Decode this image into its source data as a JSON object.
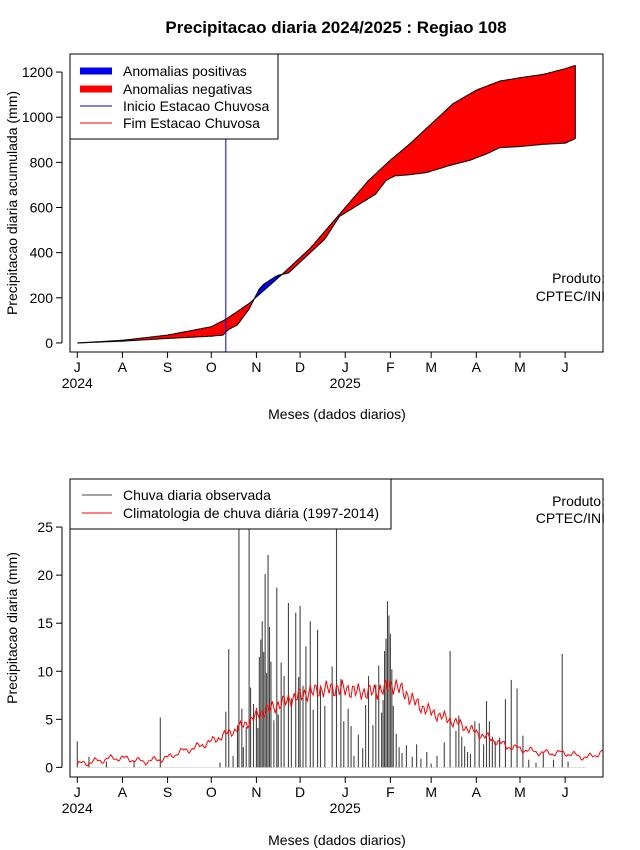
{
  "chart_data": [
    {
      "type": "area",
      "title": "Precipitacao diaria 2024/2025 : Regiao 108",
      "xlabel": "Meses (dados diarios)",
      "ylabel": "Precipitacao diaria acumulada (mm)",
      "x_ticks": [
        "J",
        "A",
        "S",
        "O",
        "N",
        "D",
        "J",
        "F",
        "M",
        "A",
        "M",
        "J"
      ],
      "year_labels": [
        {
          "year": "2024",
          "at_tick": "J"
        },
        {
          "year": "2025",
          "at_tick": "J"
        }
      ],
      "x_range_days": [
        -5,
        361
      ],
      "tick_days": [
        0,
        31,
        62,
        92,
        123,
        153,
        184,
        215,
        243,
        274,
        304,
        335
      ],
      "ylim": [
        -40,
        1280
      ],
      "y_ticks": [
        0,
        200,
        400,
        600,
        800,
        1000,
        1200
      ],
      "grid": false,
      "legend_position": "top-left",
      "legend": [
        {
          "label": "Anomalias positivas",
          "color": "#0000ee",
          "kind": "thick"
        },
        {
          "label": "Anomalias negativas",
          "color": "#ff0000",
          "kind": "thick"
        },
        {
          "label": "Inicio Estacao Chuvosa",
          "color": "#0000cc",
          "kind": "thin"
        },
        {
          "label": "Fim Estacao Chuvosa",
          "color": "#ff0000",
          "kind": "thin"
        }
      ],
      "annotation": [
        "Produto:",
        "CPTEC/INI"
      ],
      "rainy_season_start_day": 102,
      "series": [
        {
          "name": "Climatologia acumulada",
          "x": [
            0,
            31,
            62,
            92,
            102,
            118,
            140,
            160,
            180,
            200,
            215,
            228,
            243,
            258,
            274,
            290,
            304,
            320,
            335,
            342
          ],
          "y": [
            0,
            12,
            35,
            72,
            105,
            175,
            300,
            420,
            570,
            720,
            810,
            880,
            970,
            1060,
            1120,
            1160,
            1175,
            1190,
            1215,
            1230
          ]
        },
        {
          "name": "Observada acumulada",
          "x": [
            0,
            31,
            62,
            92,
            100,
            104,
            110,
            118,
            125,
            128,
            135,
            138,
            145,
            150,
            160,
            170,
            180,
            195,
            205,
            212,
            218,
            228,
            240,
            255,
            270,
            282,
            290,
            304,
            320,
            335,
            342
          ],
          "y": [
            0,
            8,
            20,
            30,
            35,
            60,
            80,
            150,
            240,
            260,
            290,
            300,
            310,
            340,
            400,
            460,
            560,
            620,
            660,
            720,
            740,
            745,
            755,
            785,
            810,
            840,
            865,
            870,
            880,
            885,
            905
          ]
        }
      ]
    },
    {
      "type": "bar",
      "xlabel": "Meses (dados diarios)",
      "ylabel": "Precipitacao diaria (mm)",
      "x_ticks": [
        "J",
        "A",
        "S",
        "O",
        "N",
        "D",
        "J",
        "F",
        "M",
        "A",
        "M",
        "J"
      ],
      "year_labels": [
        {
          "year": "2024",
          "at_tick": "J"
        },
        {
          "year": "2025",
          "at_tick": "J"
        }
      ],
      "x_range_days": [
        -5,
        361
      ],
      "tick_days": [
        0,
        31,
        62,
        92,
        123,
        153,
        184,
        215,
        243,
        274,
        304,
        335
      ],
      "ylim": [
        -1,
        30
      ],
      "y_ticks": [
        0,
        5,
        10,
        15,
        20,
        25
      ],
      "grid": false,
      "legend_position": "top-left",
      "legend": [
        {
          "label": "Chuva diaria observada",
          "color": "#444444"
        },
        {
          "label": "Climatologia de chuva diária (1997-2014)",
          "color": "#ff0000"
        }
      ],
      "annotation": [
        "Produto:",
        "CPTEC/INI"
      ],
      "series": [
        {
          "name": "Chuva diaria observada",
          "color": "#444444",
          "x": [
            0,
            8,
            20,
            39,
            57,
            98,
            102,
            104,
            107,
            110,
            111,
            113,
            114,
            116,
            118,
            119,
            121,
            123,
            124,
            125,
            126,
            127,
            128,
            129,
            130,
            131,
            132,
            133,
            135,
            137,
            138,
            140,
            142,
            145,
            147,
            150,
            152,
            153,
            155,
            157,
            160,
            162,
            165,
            167,
            170,
            175,
            178,
            181,
            183,
            186,
            188,
            190,
            193,
            196,
            198,
            200,
            203,
            205,
            207,
            209,
            210,
            211,
            212,
            213,
            214,
            215,
            216,
            217,
            219,
            221,
            223,
            226,
            230,
            233,
            236,
            240,
            243,
            247,
            252,
            256,
            260,
            262,
            264,
            266,
            268,
            270,
            273,
            276,
            279,
            281,
            283,
            285,
            287,
            290,
            294,
            298,
            302,
            306,
            310,
            315,
            320,
            327,
            333,
            337
          ],
          "y": [
            2.7,
            1.1,
            0.6,
            0.7,
            5.2,
            0.5,
            5.8,
            12.3,
            1.2,
            4.4,
            28,
            6.1,
            2.1,
            4.2,
            28,
            8.3,
            6.6,
            6.2,
            4.1,
            11.5,
            13.3,
            15.2,
            12.0,
            20.1,
            9.8,
            22.1,
            14.6,
            11.0,
            4.9,
            18.7,
            5.5,
            10.9,
            9.5,
            17.1,
            7.2,
            16.1,
            9.4,
            16.8,
            8.5,
            12.6,
            15.2,
            6.0,
            14.3,
            8.1,
            6.4,
            10.5,
            28,
            9.2,
            4.8,
            6.1,
            4.3,
            1.2,
            3.4,
            2.0,
            6.5,
            9.5,
            4.4,
            8.6,
            10.6,
            5.7,
            7.0,
            12.1,
            13.4,
            17.3,
            15.8,
            13.9,
            10.2,
            6.4,
            3.5,
            2.1,
            1.5,
            2.3,
            1.1,
            2.4,
            0.9,
            1.6,
            0.4,
            1.2,
            2.6,
            12.1,
            3.8,
            5.4,
            3.2,
            2.2,
            1.6,
            1.4,
            4.8,
            4.6,
            2.4,
            6.9,
            4.8,
            3.2,
            2.7,
            3.1,
            7.1,
            9.1,
            8.2,
            3.3,
            0.8,
            0.5,
            1.6,
            0.8,
            11.8,
            0.6
          ]
        },
        {
          "name": "Climatologia de chuva diária (1997-2014)",
          "color": "#ff0000",
          "x": [
            0,
            15,
            25,
            35,
            45,
            55,
            62,
            70,
            80,
            92,
            100,
            110,
            118,
            125,
            135,
            145,
            155,
            165,
            175,
            185,
            195,
            205,
            212,
            218,
            225,
            235,
            245,
            255,
            265,
            274,
            285,
            295,
            305,
            320,
            335,
            350,
            361
          ],
          "y": [
            0.3,
            0.7,
            1.0,
            0.9,
            0.6,
            0.8,
            1.0,
            1.6,
            2.0,
            2.7,
            3.3,
            4.0,
            4.8,
            5.6,
            6.3,
            7.0,
            7.6,
            8.0,
            8.2,
            8.1,
            7.8,
            7.9,
            8.3,
            8.6,
            7.7,
            6.4,
            5.6,
            5.0,
            4.3,
            3.6,
            2.9,
            2.2,
            1.9,
            1.5,
            1.5,
            1.0,
            1.6
          ]
        }
      ]
    }
  ]
}
